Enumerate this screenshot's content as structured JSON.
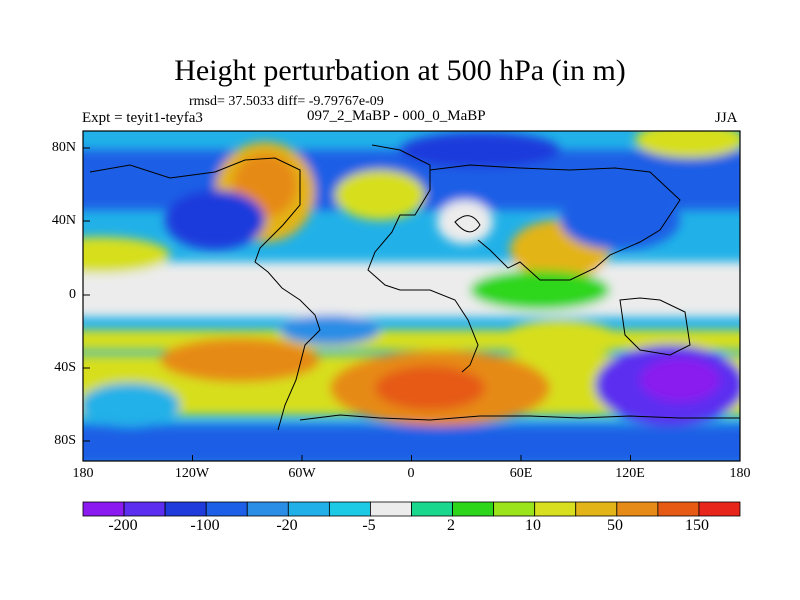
{
  "title": "Height perturbation at 500 hPa (in m)",
  "stats_text": "rmsd= 37.5033 diff= -9.79767e-09",
  "experiment": "Expt = teyit1-teyfa3",
  "comparison": "097_2_MaBP - 000_0_MaBP",
  "season": "JJA",
  "lat_ticks": [
    "80N",
    "40N",
    "0",
    "40S",
    "80S"
  ],
  "lon_ticks": [
    "180",
    "120W",
    "60W",
    "0",
    "60E",
    "120E",
    "180"
  ],
  "colorbar": {
    "colors": [
      "#8a1aef",
      "#5b2ef0",
      "#1f3bdc",
      "#1d5fe6",
      "#2a8de6",
      "#21b1e8",
      "#1dcae6",
      "#ececec",
      "#19d88e",
      "#2ed61a",
      "#9be31a",
      "#d7df1e",
      "#e3b418",
      "#e68a18",
      "#e65a14",
      "#e8251a"
    ],
    "labels": [
      "-200",
      "-100",
      "-20",
      "-5",
      "2",
      "10",
      "50",
      "150"
    ]
  }
}
